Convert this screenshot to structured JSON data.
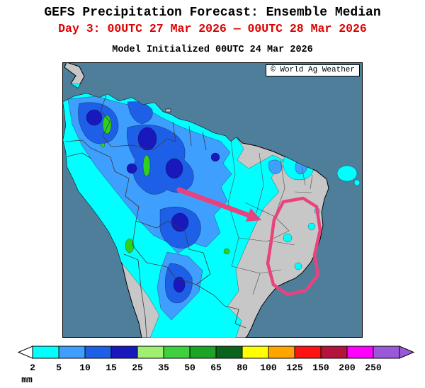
{
  "header": {
    "title": "GEFS Precipitation Forecast: Ensemble Median",
    "subtitle": "Day 3: 00UTC 27 Mar 2026 — 00UTC 28 Mar 2026",
    "init_line": "Model Initialized 00UTC 24 Mar 2026"
  },
  "map": {
    "watermark": "© World Ag Weather",
    "ocean_color": "#4F7E9B",
    "land_color": "#C7C7C7",
    "annotation_color": "#E8437E",
    "precip_colors": {
      "light": "#00FFFF",
      "moderate": "#3F9FFF",
      "heavy": "#1E5FE8",
      "very_heavy": "#1818BC",
      "intense": "#2FD01F"
    }
  },
  "legend": {
    "unit": "mm",
    "boundaries": [
      "2",
      "5",
      "10",
      "15",
      "25",
      "35",
      "50",
      "65",
      "80",
      "100",
      "125",
      "150",
      "200",
      "250"
    ],
    "cell_colors": [
      "#00FFFF",
      "#3F9FFF",
      "#1E5FE8",
      "#1818BC",
      "#9FF06E",
      "#3FD03F",
      "#1CA426",
      "#0A641C",
      "#FFFF00",
      "#FFA500",
      "#FF1414",
      "#B4143C",
      "#FF00FF",
      "#9959D9"
    ],
    "below_min_color": "#FFFFFF",
    "above_max_color": "#9959D9"
  }
}
